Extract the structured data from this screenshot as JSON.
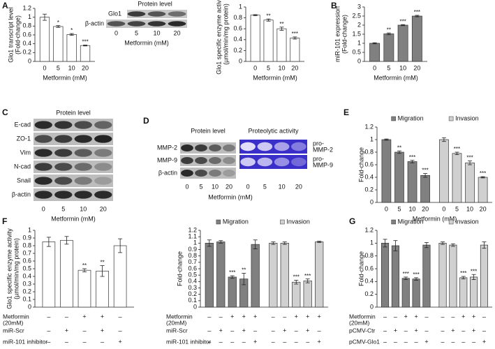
{
  "panel_labels": [
    "A",
    "B",
    "C",
    "D",
    "E",
    "F",
    "G"
  ],
  "blots": [
    {
      "header": "Protein level",
      "rows": [
        "Glo1",
        "β-actin"
      ],
      "lanes": [
        "0",
        "5",
        "10",
        "20"
      ],
      "xlabel": "Metformin (mM)"
    },
    {
      "header": "Protein level",
      "rows": [
        "E-cad",
        "ZO-1",
        "Vim",
        "N-cad",
        "Snail",
        "β-actin"
      ],
      "lanes": [
        "0",
        "5",
        "10",
        "20"
      ],
      "xlabel": "Metformin (mM)"
    },
    {
      "headers": [
        "Protein level",
        "Proteolytic activity"
      ],
      "rows": [
        "MMP-2",
        "MMP-9",
        "β-actin"
      ],
      "right_labels": [
        [
          "pro-",
          "MMP-2"
        ],
        [
          "pro-",
          "MMP-9"
        ]
      ],
      "lanes": [
        "0",
        "5",
        "10",
        "20"
      ],
      "xlabel": "Metformin (mM)"
    }
  ],
  "chart_data": [
    {
      "type": "bar",
      "ylabel": [
        "Glo1 transcript level",
        "(Fold-change)"
      ],
      "xlabel": "Metformin (mM)",
      "categories": [
        "0",
        "5",
        "10",
        "20"
      ],
      "values": [
        1,
        0.79,
        0.61,
        0.36
      ],
      "errors": [
        0.07,
        0.02,
        0.02,
        0.01
      ],
      "stars": [
        null,
        "*",
        "*",
        "***"
      ],
      "color": "#ffffff",
      "ylim": [
        0,
        1.2
      ],
      "yticks": [
        0,
        0.2,
        0.4,
        0.6,
        0.8,
        1,
        1.2
      ]
    },
    {
      "type": "bar",
      "ylabel": [
        "Glo1 specific enzyme activity",
        "(µmol/min/mg protein)"
      ],
      "xlabel": "Metformin (mM)",
      "categories": [
        "0",
        "5",
        "10",
        "20"
      ],
      "values": [
        0.85,
        0.76,
        0.6,
        0.43
      ],
      "errors": [
        0.01,
        0.02,
        0.03,
        0.02
      ],
      "stars": [
        null,
        "**",
        "**",
        "***"
      ],
      "color": "#ffffff",
      "ylim": [
        0,
        1
      ],
      "yticks": [
        0,
        0.2,
        0.4,
        0.6,
        0.8,
        1
      ]
    },
    {
      "type": "bar",
      "ylabel": [
        "miR-101 expression",
        "(Fold-change)"
      ],
      "xlabel": "Metformin (mM)",
      "categories": [
        "0",
        "5",
        "10",
        "20"
      ],
      "values": [
        1,
        1.52,
        2.0,
        2.5
      ],
      "errors": [
        0.03,
        0.05,
        0.03,
        0.04
      ],
      "stars": [
        null,
        "**",
        "***",
        "***"
      ],
      "color": "#808080",
      "ylim": [
        0,
        3
      ],
      "yticks": [
        0,
        0.5,
        1,
        1.5,
        2,
        2.5,
        3
      ]
    },
    {
      "type": "cluster_bar",
      "ylabel": [
        "Fold-change"
      ],
      "xlabel": "Metformin (mM)",
      "categories": [
        "0",
        "5",
        "10",
        "20"
      ],
      "legend": "top",
      "series": [
        {
          "name": "Migration",
          "color": "#808080",
          "values": [
            1,
            0.8,
            0.65,
            0.43
          ],
          "errors": [
            0.01,
            0.02,
            0.02,
            0.03
          ],
          "stars": [
            null,
            "**",
            "***",
            "***"
          ]
        },
        {
          "name": "Invasion",
          "color": "#d0d0d0",
          "values": [
            1,
            0.78,
            0.63,
            0.4
          ],
          "errors": [
            0.03,
            0.02,
            0.03,
            0.01
          ],
          "stars": [
            null,
            "***",
            "***",
            "***"
          ]
        }
      ],
      "ylim": [
        0,
        1.2
      ],
      "yticks": [
        0,
        0.2,
        0.4,
        0.6,
        0.8,
        1,
        1.2
      ]
    },
    {
      "type": "bar",
      "ylabel": [
        "Glo1 specific enzyme activity",
        "(µmol/min/mg protein)"
      ],
      "categories": [
        null,
        null,
        null,
        null,
        null
      ],
      "values": [
        0.85,
        0.87,
        0.48,
        0.47,
        0.8
      ],
      "errors": [
        0.06,
        0.05,
        0.02,
        0.07,
        0.09
      ],
      "stars": [
        null,
        null,
        "**",
        "**",
        null
      ],
      "color": "#ffffff",
      "ylim": [
        0,
        1
      ],
      "yticks": [
        0,
        0.1,
        0.2,
        0.3,
        0.4,
        0.5,
        0.6,
        0.7,
        0.8,
        0.9,
        1
      ],
      "treatments": [
        {
          "label": [
            "Metformin",
            "(20mM)"
          ],
          "signs": [
            "–",
            "–",
            "+",
            "+",
            "–"
          ]
        },
        {
          "label": [
            "miR-Scr"
          ],
          "signs": [
            "–",
            "+",
            "–",
            "+",
            "–"
          ]
        },
        {
          "label": [
            "miR-101 inhibitor"
          ],
          "signs": [
            "–",
            "–",
            "–",
            "–",
            "+"
          ]
        }
      ]
    },
    {
      "type": "cluster_bar",
      "ylabel": [
        "Fold-change"
      ],
      "categories": [
        null,
        null,
        null,
        null,
        null
      ],
      "legend": "top",
      "series": [
        {
          "name": "Migration",
          "color": "#808080",
          "values": [
            1,
            1.02,
            0.47,
            0.44,
            0.98
          ],
          "errors": [
            0.05,
            0.02,
            0.02,
            0.09,
            0.07
          ],
          "stars": [
            null,
            null,
            "***",
            "**",
            null
          ]
        },
        {
          "name": "Invasion",
          "color": "#d0d0d0",
          "values": [
            1,
            1,
            0.39,
            0.41,
            1.02
          ],
          "errors": [
            0.02,
            0.02,
            0.03,
            0.03,
            0.01
          ],
          "stars": [
            null,
            null,
            "***",
            "***",
            null
          ]
        }
      ],
      "ylim": [
        0,
        1.2
      ],
      "yticks": [
        0,
        0.1,
        0.2,
        0.3,
        0.4,
        0.5,
        0.6,
        0.7,
        0.8,
        0.9,
        1,
        1.1,
        1.2
      ],
      "treatments": [
        {
          "label": [
            "Metformin",
            "(20mM)"
          ],
          "signs": [
            "–",
            "–",
            "+",
            "+",
            "+"
          ]
        },
        {
          "label": [
            "miR-Scr"
          ],
          "signs": [
            "–",
            "+",
            "–",
            "+",
            "–"
          ]
        },
        {
          "label": [
            "miR-101 inhibitor"
          ],
          "signs": [
            "–",
            "–",
            "–",
            "–",
            "+"
          ]
        }
      ]
    },
    {
      "type": "cluster_bar",
      "ylabel": [
        "Fold-change"
      ],
      "categories": [
        null,
        null,
        null,
        null,
        null
      ],
      "legend": "top",
      "series": [
        {
          "name": "Migration",
          "color": "#808080",
          "values": [
            1,
            0.96,
            0.45,
            0.44,
            0.97
          ],
          "errors": [
            0.06,
            0.08,
            0.02,
            0.02,
            0.04
          ],
          "stars": [
            null,
            null,
            "***",
            "***",
            null
          ]
        },
        {
          "name": "Invasion",
          "color": "#d0d0d0",
          "values": [
            1,
            0.97,
            0.46,
            0.47,
            0.97
          ],
          "errors": [
            0.02,
            0.02,
            0.02,
            0.04,
            0.05
          ],
          "stars": [
            null,
            null,
            "***",
            "***",
            null
          ]
        }
      ],
      "ylim": [
        0,
        1.2
      ],
      "yticks": [
        0,
        0.2,
        0.4,
        0.6,
        0.8,
        1,
        1.2
      ],
      "treatments": [
        {
          "label": [
            "Metformin",
            "(20mM)"
          ],
          "signs": [
            "–",
            "–",
            "+",
            "+",
            "–"
          ]
        },
        {
          "label": [
            "pCMV-Ctr"
          ],
          "signs": [
            "–",
            "+",
            "–",
            "+",
            "–"
          ]
        },
        {
          "label": [
            "pCMV-Glo1"
          ],
          "signs": [
            "–",
            "–",
            "–",
            "–",
            "+"
          ]
        }
      ]
    }
  ]
}
